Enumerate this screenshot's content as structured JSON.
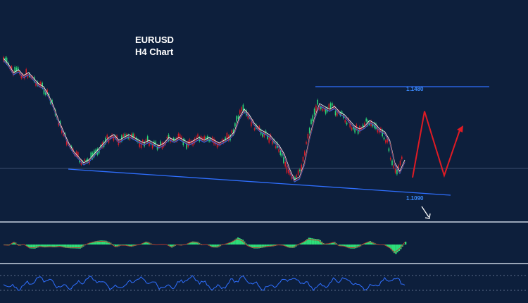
{
  "chart_data": {
    "type": "line",
    "title": "EURUSD",
    "subtitle": "H4 Chart",
    "annotations": [
      {
        "label": "1.1480",
        "value": 1.148,
        "kind": "resistance"
      },
      {
        "label": "1.1090",
        "value": 1.109,
        "kind": "support"
      }
    ],
    "projection": {
      "color": "#e01b24",
      "description_points": [
        [
          0,
          1.121
        ],
        [
          1,
          1.146
        ],
        [
          2,
          1.121
        ],
        [
          3,
          1.14
        ]
      ]
    },
    "y_range": [
      1.105,
      1.165
    ],
    "series": [
      {
        "values": [
          1.159,
          1.157,
          1.154,
          1.155,
          1.153,
          1.154,
          1.152,
          1.15,
          1.149,
          1.146,
          1.142,
          1.137,
          1.133,
          1.129,
          1.126,
          1.124,
          1.122,
          1.123,
          1.125,
          1.127,
          1.129,
          1.131,
          1.132,
          1.13,
          1.131,
          1.132,
          1.131,
          1.13,
          1.129,
          1.13,
          1.129,
          1.128,
          1.129,
          1.131,
          1.13,
          1.131,
          1.13,
          1.129,
          1.13,
          1.131,
          1.13,
          1.131,
          1.13,
          1.129,
          1.13,
          1.131,
          1.133,
          1.138,
          1.141,
          1.139,
          1.136,
          1.134,
          1.133,
          1.132,
          1.13,
          1.128,
          1.125,
          1.12,
          1.116,
          1.117,
          1.122,
          1.131,
          1.138,
          1.143,
          1.142,
          1.141,
          1.142,
          1.14,
          1.139,
          1.137,
          1.135,
          1.134,
          1.135,
          1.137,
          1.136,
          1.134,
          1.133,
          1.13,
          1.122,
          1.119,
          1.123
        ]
      }
    ],
    "colors": {
      "background": "#0d1f3c",
      "lines": "#2f6fff",
      "annotation_text": "#3b8bff",
      "histogram": "#2ee07a",
      "candle_up": "#2ee07a",
      "candle_down": "#e01b24",
      "title": "#ffffff"
    }
  }
}
